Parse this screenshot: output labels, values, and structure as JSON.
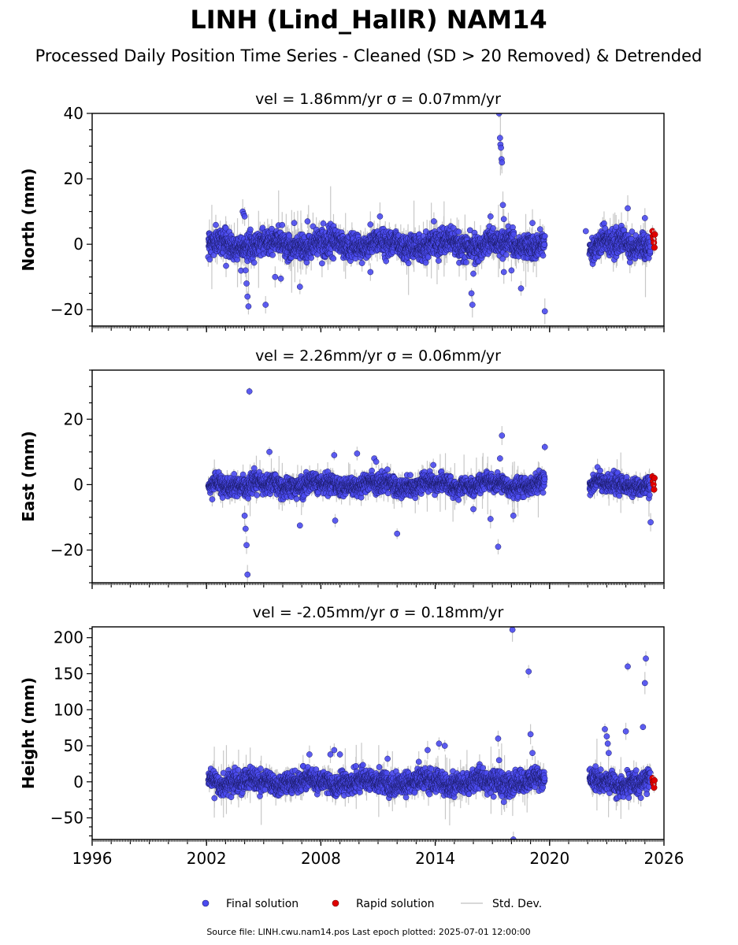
{
  "figure": {
    "title": "LINH (Lind_HallR) NAM14",
    "subtitle": "Processed Daily Position Time Series - Cleaned (SD > 20 Removed) & Detrended",
    "footer": "Source file: LINH.cwu.nam14.pos  Last epoch plotted: 2025-07-01 12:00:00",
    "legend": [
      {
        "label": "Final solution",
        "color": "#4b4bf0",
        "kind": "marker"
      },
      {
        "label": "Rapid solution",
        "color": "#e00000",
        "kind": "marker"
      },
      {
        "label": "Std. Dev.",
        "color": "#cccccc",
        "kind": "line"
      }
    ]
  },
  "chart_data": [
    {
      "type": "scatter",
      "component": "north",
      "title": "vel = 1.86mm/yr   σ = 0.07mm/yr",
      "ylabel": "North (mm)",
      "xlim": [
        1996,
        2026
      ],
      "ylim": [
        -25,
        40
      ],
      "yticks": [
        -20,
        0,
        20,
        40
      ],
      "xticks": [
        1996,
        2002,
        2008,
        2014,
        2020,
        2026
      ],
      "show_xtick_labels": false,
      "grid": false,
      "final_segments": [
        [
          2002.1,
          2019.75
        ],
        [
          2022.1,
          2025.3
        ]
      ],
      "rapid_segment": [
        2025.35,
        2025.5
      ],
      "typical_scatter": 1.8,
      "outliers": [
        [
          2003.9,
          10.0
        ],
        [
          2003.95,
          9.2
        ],
        [
          2004.0,
          8.5
        ],
        [
          2004.05,
          -8.0
        ],
        [
          2004.1,
          -12.0
        ],
        [
          2004.15,
          -16.0
        ],
        [
          2004.2,
          -19.0
        ],
        [
          2004.3,
          4.5
        ],
        [
          2005.1,
          -18.5
        ],
        [
          2005.6,
          -10.0
        ],
        [
          2005.9,
          -10.5
        ],
        [
          2006.6,
          6.5
        ],
        [
          2006.9,
          -13.0
        ],
        [
          2007.3,
          7.0
        ],
        [
          2010.6,
          -8.5
        ],
        [
          2011.1,
          8.5
        ],
        [
          2015.9,
          -15.0
        ],
        [
          2015.95,
          -18.5
        ],
        [
          2016.0,
          -9.0
        ],
        [
          2016.9,
          8.5
        ],
        [
          2017.35,
          40.0
        ],
        [
          2017.4,
          32.5
        ],
        [
          2017.42,
          30.5
        ],
        [
          2017.45,
          29.5
        ],
        [
          2017.48,
          26.0
        ],
        [
          2017.5,
          25.0
        ],
        [
          2017.55,
          12.0
        ],
        [
          2017.6,
          -8.5
        ],
        [
          2018.0,
          -8.0
        ],
        [
          2018.5,
          -13.5
        ],
        [
          2019.1,
          6.5
        ],
        [
          2019.75,
          -20.5
        ],
        [
          2021.9,
          4.0
        ],
        [
          2024.1,
          11.0
        ],
        [
          2025.0,
          8.0
        ]
      ],
      "rapid_points": [
        [
          2025.4,
          4.0
        ],
        [
          2025.42,
          2.5
        ],
        [
          2025.45,
          1.5
        ],
        [
          2025.47,
          0.5
        ],
        [
          2025.5,
          -1.0
        ],
        [
          2025.52,
          3.0
        ]
      ]
    },
    {
      "type": "scatter",
      "component": "east",
      "title": "vel = 2.26mm/yr   σ = 0.06mm/yr",
      "ylabel": "East (mm)",
      "xlim": [
        1996,
        2026
      ],
      "ylim": [
        -30,
        35
      ],
      "yticks": [
        -20,
        0,
        20
      ],
      "xticks": [
        1996,
        2002,
        2008,
        2014,
        2020,
        2026
      ],
      "show_xtick_labels": false,
      "grid": false,
      "final_segments": [
        [
          2002.1,
          2019.75
        ],
        [
          2022.1,
          2025.3
        ]
      ],
      "rapid_segment": [
        2025.35,
        2025.5
      ],
      "typical_scatter": 1.3,
      "outliers": [
        [
          2002.3,
          -4.5
        ],
        [
          2004.0,
          -9.5
        ],
        [
          2004.05,
          -13.5
        ],
        [
          2004.1,
          -18.5
        ],
        [
          2004.15,
          -27.5
        ],
        [
          2004.25,
          28.5
        ],
        [
          2004.5,
          5.0
        ],
        [
          2005.3,
          10.0
        ],
        [
          2006.9,
          -12.5
        ],
        [
          2008.7,
          9.0
        ],
        [
          2008.75,
          -11.0
        ],
        [
          2009.9,
          9.5
        ],
        [
          2010.8,
          8.0
        ],
        [
          2010.9,
          7.0
        ],
        [
          2012.0,
          -15.0
        ],
        [
          2013.9,
          6.0
        ],
        [
          2016.0,
          -7.5
        ],
        [
          2016.9,
          -10.5
        ],
        [
          2017.3,
          -19.0
        ],
        [
          2017.4,
          8.0
        ],
        [
          2017.5,
          15.0
        ],
        [
          2018.1,
          -9.5
        ],
        [
          2019.75,
          11.5
        ],
        [
          2025.3,
          -11.5
        ]
      ],
      "rapid_points": [
        [
          2025.4,
          2.5
        ],
        [
          2025.42,
          1.0
        ],
        [
          2025.45,
          0.0
        ],
        [
          2025.48,
          -1.5
        ],
        [
          2025.5,
          2.0
        ]
      ]
    },
    {
      "type": "scatter",
      "component": "height",
      "title": "vel = -2.05mm/yr   σ = 0.18mm/yr",
      "ylabel": "Height (mm)",
      "xlim": [
        1996,
        2026
      ],
      "ylim": [
        -80,
        215
      ],
      "yticks": [
        -50,
        0,
        50,
        100,
        150,
        200
      ],
      "xticks": [
        1996,
        2002,
        2008,
        2014,
        2020,
        2026
      ],
      "xtick_labels": [
        "1996",
        "2002",
        "2008",
        "2014",
        "2020",
        "2026"
      ],
      "show_xtick_labels": true,
      "grid": false,
      "final_segments": [
        [
          2002.1,
          2019.75
        ],
        [
          2022.1,
          2025.3
        ]
      ],
      "rapid_segment": [
        2025.35,
        2025.5
      ],
      "typical_scatter": 7.0,
      "outliers": [
        [
          2007.4,
          38.0
        ],
        [
          2008.7,
          44.0
        ],
        [
          2008.5,
          38.0
        ],
        [
          2009.0,
          38.0
        ],
        [
          2011.5,
          32.0
        ],
        [
          2013.6,
          44.0
        ],
        [
          2014.2,
          53.0
        ],
        [
          2014.5,
          50.0
        ],
        [
          2017.3,
          60.0
        ],
        [
          2017.35,
          30.0
        ],
        [
          2017.5,
          -20.0
        ],
        [
          2017.6,
          -28.0
        ],
        [
          2018.05,
          211.0
        ],
        [
          2018.1,
          -80.0
        ],
        [
          2018.9,
          153.0
        ],
        [
          2019.0,
          66.0
        ],
        [
          2019.1,
          40.0
        ],
        [
          2022.9,
          73.0
        ],
        [
          2023.0,
          63.0
        ],
        [
          2023.05,
          53.0
        ],
        [
          2023.1,
          40.0
        ],
        [
          2024.0,
          70.0
        ],
        [
          2024.1,
          160.0
        ],
        [
          2024.9,
          76.0
        ],
        [
          2025.0,
          137.0
        ],
        [
          2025.05,
          171.0
        ],
        [
          2025.1,
          -17.0
        ]
      ],
      "rapid_points": [
        [
          2025.4,
          5.0
        ],
        [
          2025.42,
          0.0
        ],
        [
          2025.45,
          -3.0
        ],
        [
          2025.48,
          -8.0
        ],
        [
          2025.5,
          2.0
        ]
      ]
    }
  ]
}
